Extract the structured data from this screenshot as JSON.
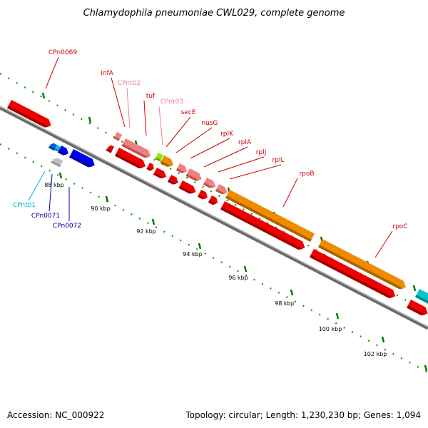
{
  "title": "Chlamydophila pneumoniae CWL029, complete genome",
  "footer": {
    "accession": "Accession: NC_000922",
    "summary": "Topology: circular; Length: 1,230,230 bp; Genes: 1,094"
  },
  "kbp_labels": [
    "88 kbp",
    "90 kbp",
    "92 kbp",
    "94 kbp",
    "96 kbp",
    "98 kbp",
    "100 kbp",
    "102 kbp"
  ],
  "colors": {
    "red_gene": "#ee0000",
    "rrna_pink": "#ee8080",
    "orange_gene": "#ee8c00",
    "blue_gene": "#0000ee",
    "cyan_gene": "#00c8c8",
    "green_gene": "#8cee00",
    "grey_gene": "#c0c0c0",
    "label_red": "#cc0000",
    "label_pink": "#ee80a0",
    "label_blue": "#0000aa",
    "label_cyan": "#00b0e0",
    "backbone": "#909090",
    "tick_green": "#008800"
  },
  "gene_labels": [
    {
      "text": "CPn0069",
      "color": "label_red"
    },
    {
      "text": "infA",
      "color": "label_red"
    },
    {
      "text": "CPnt02",
      "color": "label_pink"
    },
    {
      "text": "tuf",
      "color": "label_red"
    },
    {
      "text": "CPnt03",
      "color": "label_pink"
    },
    {
      "text": "secE",
      "color": "label_red"
    },
    {
      "text": "nusG",
      "color": "label_red"
    },
    {
      "text": "rplK",
      "color": "label_red"
    },
    {
      "text": "rplA",
      "color": "label_red"
    },
    {
      "text": "rplJ",
      "color": "label_red"
    },
    {
      "text": "rplL",
      "color": "label_red"
    },
    {
      "text": "rpoB",
      "color": "label_red"
    },
    {
      "text": "rpoC",
      "color": "label_red"
    },
    {
      "text": "CPnt01",
      "color": "label_cyan"
    },
    {
      "text": "CPn0071",
      "color": "label_blue"
    },
    {
      "text": "CPn0072",
      "color": "label_blue"
    }
  ]
}
